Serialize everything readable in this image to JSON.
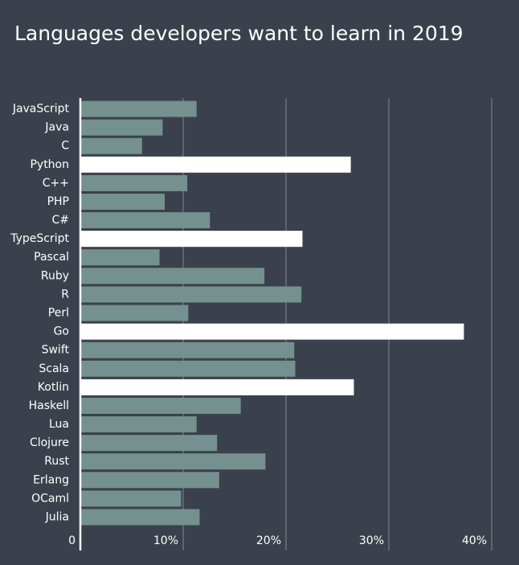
{
  "chart_data": {
    "type": "bar",
    "orientation": "horizontal",
    "title": "Languages developers want to learn in 2019",
    "categories": [
      "JavaScript",
      "Java",
      "C",
      "Python",
      "C++",
      "PHP",
      "C#",
      "TypeScript",
      "Pascal",
      "Ruby",
      "R",
      "Perl",
      "Go",
      "Swift",
      "Scala",
      "Kotlin",
      "Haskell",
      "Lua",
      "Clojure",
      "Rust",
      "Erlang",
      "OCaml",
      "Julia"
    ],
    "values": [
      11.3,
      8.0,
      6.0,
      26.3,
      10.4,
      8.2,
      12.6,
      21.6,
      7.7,
      17.9,
      21.5,
      10.5,
      37.3,
      20.8,
      20.9,
      26.6,
      15.6,
      11.3,
      13.3,
      18.0,
      13.5,
      9.8,
      11.6
    ],
    "colors": [
      "#74918f",
      "#74918f",
      "#74918f",
      "#ffffff",
      "#74918f",
      "#74918f",
      "#74918f",
      "#ffffff",
      "#74918f",
      "#74918f",
      "#74918f",
      "#74918f",
      "#ffffff",
      "#74918f",
      "#74918f",
      "#ffffff",
      "#74918f",
      "#74918f",
      "#74918f",
      "#74918f",
      "#74918f",
      "#74918f",
      "#74918f"
    ],
    "xlim": [
      0,
      40
    ],
    "xticks": [
      0,
      {
        "value": 10,
        "label": "10%"
      },
      {
        "value": 20,
        "label": "20%"
      },
      {
        "value": 30,
        "label": "30%"
      },
      {
        "value": 40,
        "label": "40%"
      }
    ],
    "grid": true
  }
}
